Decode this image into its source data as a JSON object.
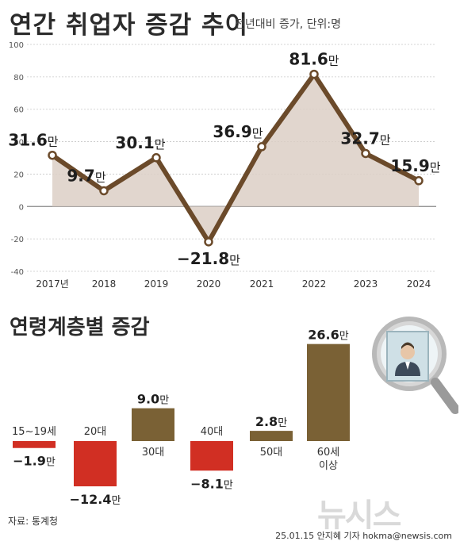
{
  "header": {
    "title": "연간 취업자 증감 추이",
    "subtitle": "전년대비 증가, 단위:명"
  },
  "chart_data": [
    {
      "type": "line",
      "x": [
        "2017년",
        "2018",
        "2019",
        "2020",
        "2021",
        "2022",
        "2023",
        "2024"
      ],
      "series": [
        {
          "values": [
            31.6,
            9.7,
            30.1,
            -21.8,
            36.9,
            81.6,
            32.7,
            15.9
          ]
        }
      ],
      "data_labels": [
        "31.6만",
        "9.7만",
        "30.1만",
        "−21.8만",
        "36.9만",
        "81.6만",
        "32.7만",
        "15.9만"
      ],
      "ylim": [
        -40,
        100
      ],
      "yticks": [
        -40,
        -20,
        0,
        20,
        40,
        60,
        80,
        100
      ],
      "yticklabels": [
        "-40",
        "-20",
        "0",
        "20",
        "40",
        "60",
        "80",
        "100"
      ],
      "grid": true,
      "colors": {
        "line": "#6b4a2a",
        "fill": "#dccfc5",
        "point_fill": "#ffffff"
      }
    },
    {
      "type": "bar",
      "title": "연령계층별 증감",
      "categories": [
        "15~19세",
        "20대",
        "30대",
        "40대",
        "50대",
        "60세 이상"
      ],
      "values": [
        -1.9,
        -12.4,
        9.0,
        -8.1,
        2.8,
        26.6
      ],
      "data_labels": [
        "−1.9만",
        "−12.4만",
        "9.0만",
        "−8.1만",
        "2.8만",
        "26.6만"
      ],
      "colors": {
        "positive": "#7a6135",
        "negative": "#d12f23"
      }
    }
  ],
  "footer": {
    "source": "자료: 통계청",
    "credit": "25.01.15  안지혜 기자  hokma@newsis.com",
    "logo": "뉴시스"
  }
}
